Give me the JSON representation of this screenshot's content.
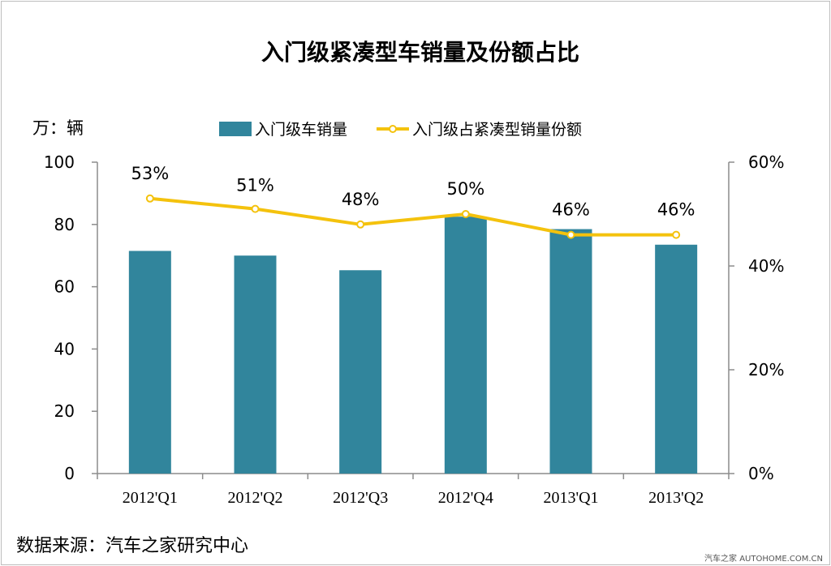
{
  "chart_data": {
    "type": "bar",
    "title": "入门级紧凑型车销量及份额占比",
    "ylabel_left": "万：辆",
    "categories": [
      "2012'Q1",
      "2012'Q2",
      "2012'Q3",
      "2012'Q4",
      "2013'Q1",
      "2013'Q2"
    ],
    "series": [
      {
        "name": "入门级车销量",
        "type": "bar",
        "axis": "left",
        "color": "#31859c",
        "values": [
          71.5,
          70,
          65.3,
          82.5,
          78.5,
          73.5
        ]
      },
      {
        "name": "入门级占紧凑型销量份额",
        "type": "line",
        "axis": "right",
        "color": "#f4c20d",
        "values": [
          53,
          51,
          48,
          50,
          46,
          46
        ],
        "labels": [
          "53%",
          "51%",
          "48%",
          "50%",
          "46%",
          "46%"
        ]
      }
    ],
    "y_left": {
      "min": 0,
      "max": 100,
      "ticks": [
        "0",
        "20",
        "40",
        "60",
        "80",
        "100"
      ]
    },
    "y_right": {
      "min": 0,
      "max": 60,
      "ticks": [
        "0%",
        "20%",
        "40%",
        "60%"
      ]
    },
    "legend_position": "top",
    "grid": false
  },
  "source": "数据来源：汽车之家研究中心",
  "watermark": "汽车之家 AUTOHOME.COM.CN"
}
